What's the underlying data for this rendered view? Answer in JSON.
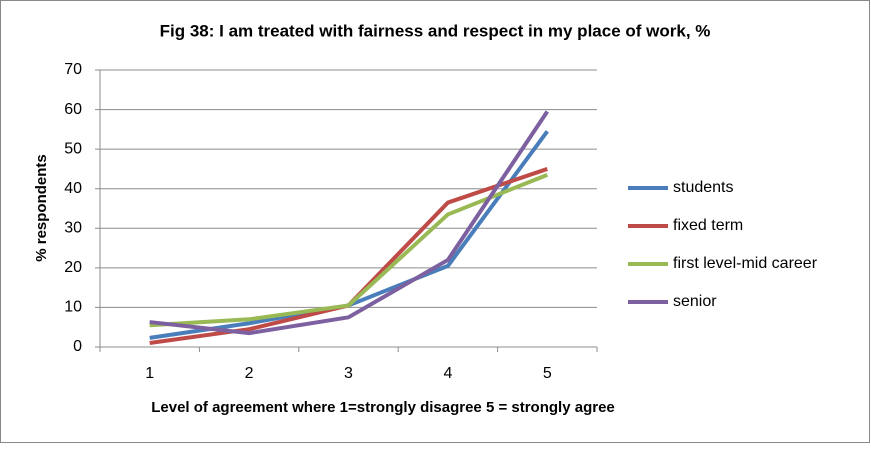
{
  "chart_data": {
    "type": "line",
    "title": "Fig 38: I am treated with fairness and respect in my place of work, %",
    "x_label": "Level of agreement where 1=strongly disagree 5 = strongly agree",
    "y_label": "% respondents",
    "categories": [
      "1",
      "2",
      "3",
      "4",
      "5"
    ],
    "series": [
      {
        "name": "students",
        "color": "#4a7ebb",
        "values": [
          2.3,
          6,
          10.5,
          20.5,
          54.5
        ]
      },
      {
        "name": "fixed term",
        "color": "#be4b48",
        "values": [
          1,
          4.5,
          10.5,
          36.5,
          45
        ]
      },
      {
        "name": "first level-mid career",
        "color": "#98b954",
        "values": [
          5.5,
          7,
          10.5,
          33.5,
          43.5
        ]
      },
      {
        "name": "senior",
        "color": "#7d60a0",
        "values": [
          6.3,
          3.5,
          7.5,
          22,
          59.5
        ]
      }
    ],
    "ylim": [
      0,
      70
    ],
    "yticks": [
      0,
      10,
      20,
      30,
      40,
      50,
      60,
      70
    ],
    "grid": true,
    "legend": "right"
  }
}
